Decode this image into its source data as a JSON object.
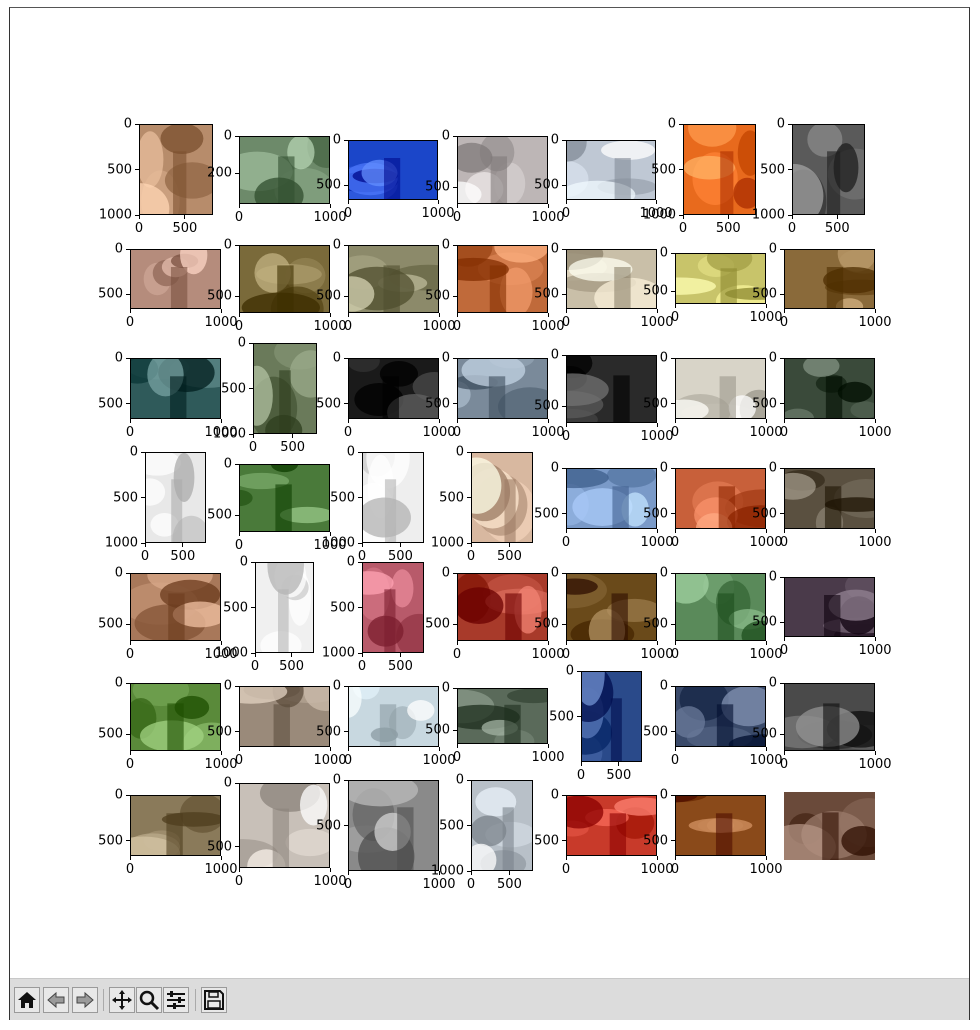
{
  "window": {
    "title": ""
  },
  "toolbar": {
    "buttons": [
      {
        "name": "home-button",
        "icon": "home-icon"
      },
      {
        "name": "back-button",
        "icon": "arrow-left-icon"
      },
      {
        "name": "forward-button",
        "icon": "arrow-right-icon"
      },
      {
        "name": "pan-button",
        "icon": "move-icon"
      },
      {
        "name": "zoom-button",
        "icon": "magnifier-icon"
      },
      {
        "name": "configure-subplots-button",
        "icon": "sliders-icon"
      },
      {
        "name": "save-button",
        "icon": "floppy-disk-icon"
      }
    ]
  },
  "figure": {
    "subplots": [
      {
        "id": "r0c0",
        "theme": "#b78c6b",
        "x_ticks": [
          "0",
          "500"
        ],
        "y_ticks": [
          "0",
          "500",
          "1000"
        ]
      },
      {
        "id": "r0c1",
        "theme": "#6d8a6a",
        "x_ticks": [
          "0",
          "1000"
        ],
        "y_ticks": [
          "0",
          "200"
        ]
      },
      {
        "id": "r0c2",
        "theme": "#1b46c9",
        "x_ticks": [
          "0",
          "1000"
        ],
        "y_ticks": [
          "0",
          "500"
        ]
      },
      {
        "id": "r0c3",
        "theme": "#bdb6b6",
        "x_ticks": [
          "0",
          "1000"
        ],
        "y_ticks": [
          "0",
          "500"
        ]
      },
      {
        "id": "r0c4",
        "theme": "#bfc8d4",
        "x_ticks": [
          "0",
          "1000"
        ],
        "y_ticks": [
          "0",
          "500"
        ]
      },
      {
        "id": "r0c5",
        "theme": "#e86a1d",
        "x_ticks": [
          "0",
          "500"
        ],
        "y_ticks": [
          "0",
          "500",
          "1000"
        ]
      },
      {
        "id": "r0c6",
        "theme": "#5a5a5a",
        "x_ticks": [
          "0",
          "500"
        ],
        "y_ticks": [
          "0",
          "500",
          "1000"
        ]
      },
      {
        "id": "r1c0",
        "theme": "#b58c7c",
        "x_ticks": [
          "0",
          "1000"
        ],
        "y_ticks": [
          "0",
          "500"
        ]
      },
      {
        "id": "r1c1",
        "theme": "#7a6a3a",
        "x_ticks": [
          "0",
          "1000"
        ],
        "y_ticks": [
          "0",
          "500"
        ]
      },
      {
        "id": "r1c2",
        "theme": "#8c8a6a",
        "x_ticks": [
          "0",
          "1000"
        ],
        "y_ticks": [
          "0",
          "500"
        ]
      },
      {
        "id": "r1c3",
        "theme": "#c06a3a",
        "x_ticks": [
          "0",
          "1000"
        ],
        "y_ticks": [
          "0",
          "500"
        ]
      },
      {
        "id": "r1c4",
        "theme": "#c9bfa8",
        "x_ticks": [
          "0",
          "1000"
        ],
        "y_ticks": [
          "0",
          "500"
        ]
      },
      {
        "id": "r1c5",
        "theme": "#c8c46a",
        "x_ticks": [
          "0",
          "1000"
        ],
        "y_ticks": [
          "0",
          "500"
        ]
      },
      {
        "id": "r1c6",
        "theme": "#8a6a3a",
        "x_ticks": [
          "0",
          "1000"
        ],
        "y_ticks": [
          "0",
          "500"
        ]
      },
      {
        "id": "r2c0",
        "theme": "#2f5a5a",
        "x_ticks": [
          "0",
          "1000"
        ],
        "y_ticks": [
          "0",
          "500"
        ]
      },
      {
        "id": "r2c1",
        "theme": "#6a7a5a",
        "x_ticks": [
          "0",
          "500"
        ],
        "y_ticks": [
          "0",
          "500",
          "1000"
        ]
      },
      {
        "id": "r2c2",
        "theme": "#1a1a1a",
        "x_ticks": [
          "0",
          "1000"
        ],
        "y_ticks": [
          "0",
          "500"
        ]
      },
      {
        "id": "r2c3",
        "theme": "#7a8a9a",
        "x_ticks": [
          "0",
          "1000"
        ],
        "y_ticks": [
          "0",
          "500"
        ]
      },
      {
        "id": "r2c4",
        "theme": "#2a2a2a",
        "x_ticks": [
          "0",
          "1000"
        ],
        "y_ticks": [
          "0",
          "500"
        ]
      },
      {
        "id": "r2c5",
        "theme": "#d8d4c8",
        "x_ticks": [
          "0",
          "1000"
        ],
        "y_ticks": [
          "0",
          "500"
        ]
      },
      {
        "id": "r2c6",
        "theme": "#3a4a3a",
        "x_ticks": [
          "0",
          "1000"
        ],
        "y_ticks": [
          "0",
          "500"
        ]
      },
      {
        "id": "r3c0",
        "theme": "#e8e8e8",
        "x_ticks": [
          "0",
          "500"
        ],
        "y_ticks": [
          "0",
          "500",
          "1000"
        ]
      },
      {
        "id": "r3c1",
        "theme": "#4a7a3a",
        "x_ticks": [
          "0",
          "1000"
        ],
        "y_ticks": [
          "0",
          "500"
        ]
      },
      {
        "id": "r3c2",
        "theme": "#eeeeee",
        "x_ticks": [
          "0",
          "500"
        ],
        "y_ticks": [
          "0",
          "500",
          "1000"
        ]
      },
      {
        "id": "r3c3",
        "theme": "#d8b8a0",
        "x_ticks": [
          "0",
          "500"
        ],
        "y_ticks": [
          "0",
          "500",
          "1000"
        ]
      },
      {
        "id": "r3c4",
        "theme": "#7a9ac8",
        "x_ticks": [
          "0",
          "1000"
        ],
        "y_ticks": [
          "0",
          "500"
        ]
      },
      {
        "id": "r3c5",
        "theme": "#c8603a",
        "x_ticks": [
          "0",
          "1000"
        ],
        "y_ticks": [
          "0",
          "500"
        ]
      },
      {
        "id": "r3c6",
        "theme": "#5a5040",
        "x_ticks": [
          "0",
          "1000"
        ],
        "y_ticks": [
          "0",
          "500"
        ]
      },
      {
        "id": "r4c0",
        "theme": "#a8785a",
        "x_ticks": [
          "0",
          "1000"
        ],
        "y_ticks": [
          "0",
          "500"
        ]
      },
      {
        "id": "r4c1",
        "theme": "#f0f0f0",
        "x_ticks": [
          "0",
          "500"
        ],
        "y_ticks": [
          "0",
          "500",
          "1000"
        ]
      },
      {
        "id": "r4c2",
        "theme": "#b85a6a",
        "x_ticks": [
          "0",
          "500"
        ],
        "y_ticks": [
          "0",
          "500",
          "1000"
        ]
      },
      {
        "id": "r4c3",
        "theme": "#a83a2a",
        "x_ticks": [
          "0",
          "1000"
        ],
        "y_ticks": [
          "0",
          "500"
        ]
      },
      {
        "id": "r4c4",
        "theme": "#6a4a1a",
        "x_ticks": [
          "0",
          "1000"
        ],
        "y_ticks": [
          "0",
          "500"
        ]
      },
      {
        "id": "r4c5",
        "theme": "#5a8a5a",
        "x_ticks": [
          "0",
          "1000"
        ],
        "y_ticks": [
          "0",
          "500"
        ]
      },
      {
        "id": "r4c6",
        "theme": "#4a3a4a",
        "x_ticks": [
          "0",
          "1000"
        ],
        "y_ticks": [
          "0",
          "500"
        ]
      },
      {
        "id": "r5c0",
        "theme": "#5a8a3a",
        "x_ticks": [
          "0",
          "1000"
        ],
        "y_ticks": [
          "0",
          "500"
        ]
      },
      {
        "id": "r5c1",
        "theme": "#9a8a7a",
        "x_ticks": [
          "0",
          "1000"
        ],
        "y_ticks": [
          "0",
          "500"
        ]
      },
      {
        "id": "r5c2",
        "theme": "#c8d8e0",
        "x_ticks": [
          "0",
          "1000"
        ],
        "y_ticks": [
          "0",
          "500"
        ]
      },
      {
        "id": "r5c3",
        "theme": "#5a6a5a",
        "x_ticks": [
          "0",
          "1000"
        ],
        "y_ticks": [
          "0",
          "500"
        ]
      },
      {
        "id": "r5c4",
        "theme": "#2a4a8a",
        "x_ticks": [
          "0",
          "500"
        ],
        "y_ticks": [
          "0",
          "500"
        ]
      },
      {
        "id": "r5c5",
        "theme": "#3a4a6a",
        "x_ticks": [
          "0",
          "1000"
        ],
        "y_ticks": [
          "0",
          "500"
        ]
      },
      {
        "id": "r5c6",
        "theme": "#4a4a4a",
        "x_ticks": [
          "0",
          "1000"
        ],
        "y_ticks": [
          "0",
          "500"
        ]
      },
      {
        "id": "r6c0",
        "theme": "#8a7a5a",
        "x_ticks": [
          "0",
          "1000"
        ],
        "y_ticks": [
          "0",
          "500"
        ]
      },
      {
        "id": "r6c1",
        "theme": "#c8c0b8",
        "x_ticks": [
          "0",
          "1000"
        ],
        "y_ticks": [
          "0",
          "500"
        ]
      },
      {
        "id": "r6c2",
        "theme": "#8a8a8a",
        "x_ticks": [
          "0",
          "1000"
        ],
        "y_ticks": [
          "0",
          "500"
        ]
      },
      {
        "id": "r6c3",
        "theme": "#b8c0c8",
        "x_ticks": [
          "0",
          "500"
        ],
        "y_ticks": [
          "0",
          "500",
          "1000"
        ]
      },
      {
        "id": "r6c4",
        "theme": "#c83a2a",
        "x_ticks": [
          "0",
          "1000"
        ],
        "y_ticks": [
          "0",
          "500"
        ]
      },
      {
        "id": "r6c5",
        "theme": "#8a4a1a",
        "x_ticks": [
          "0",
          "1000"
        ],
        "y_ticks": [
          "0",
          "500"
        ]
      },
      {
        "id": "r6c6",
        "theme": "#6a4a3a",
        "x_ticks": [],
        "y_ticks": []
      }
    ]
  }
}
